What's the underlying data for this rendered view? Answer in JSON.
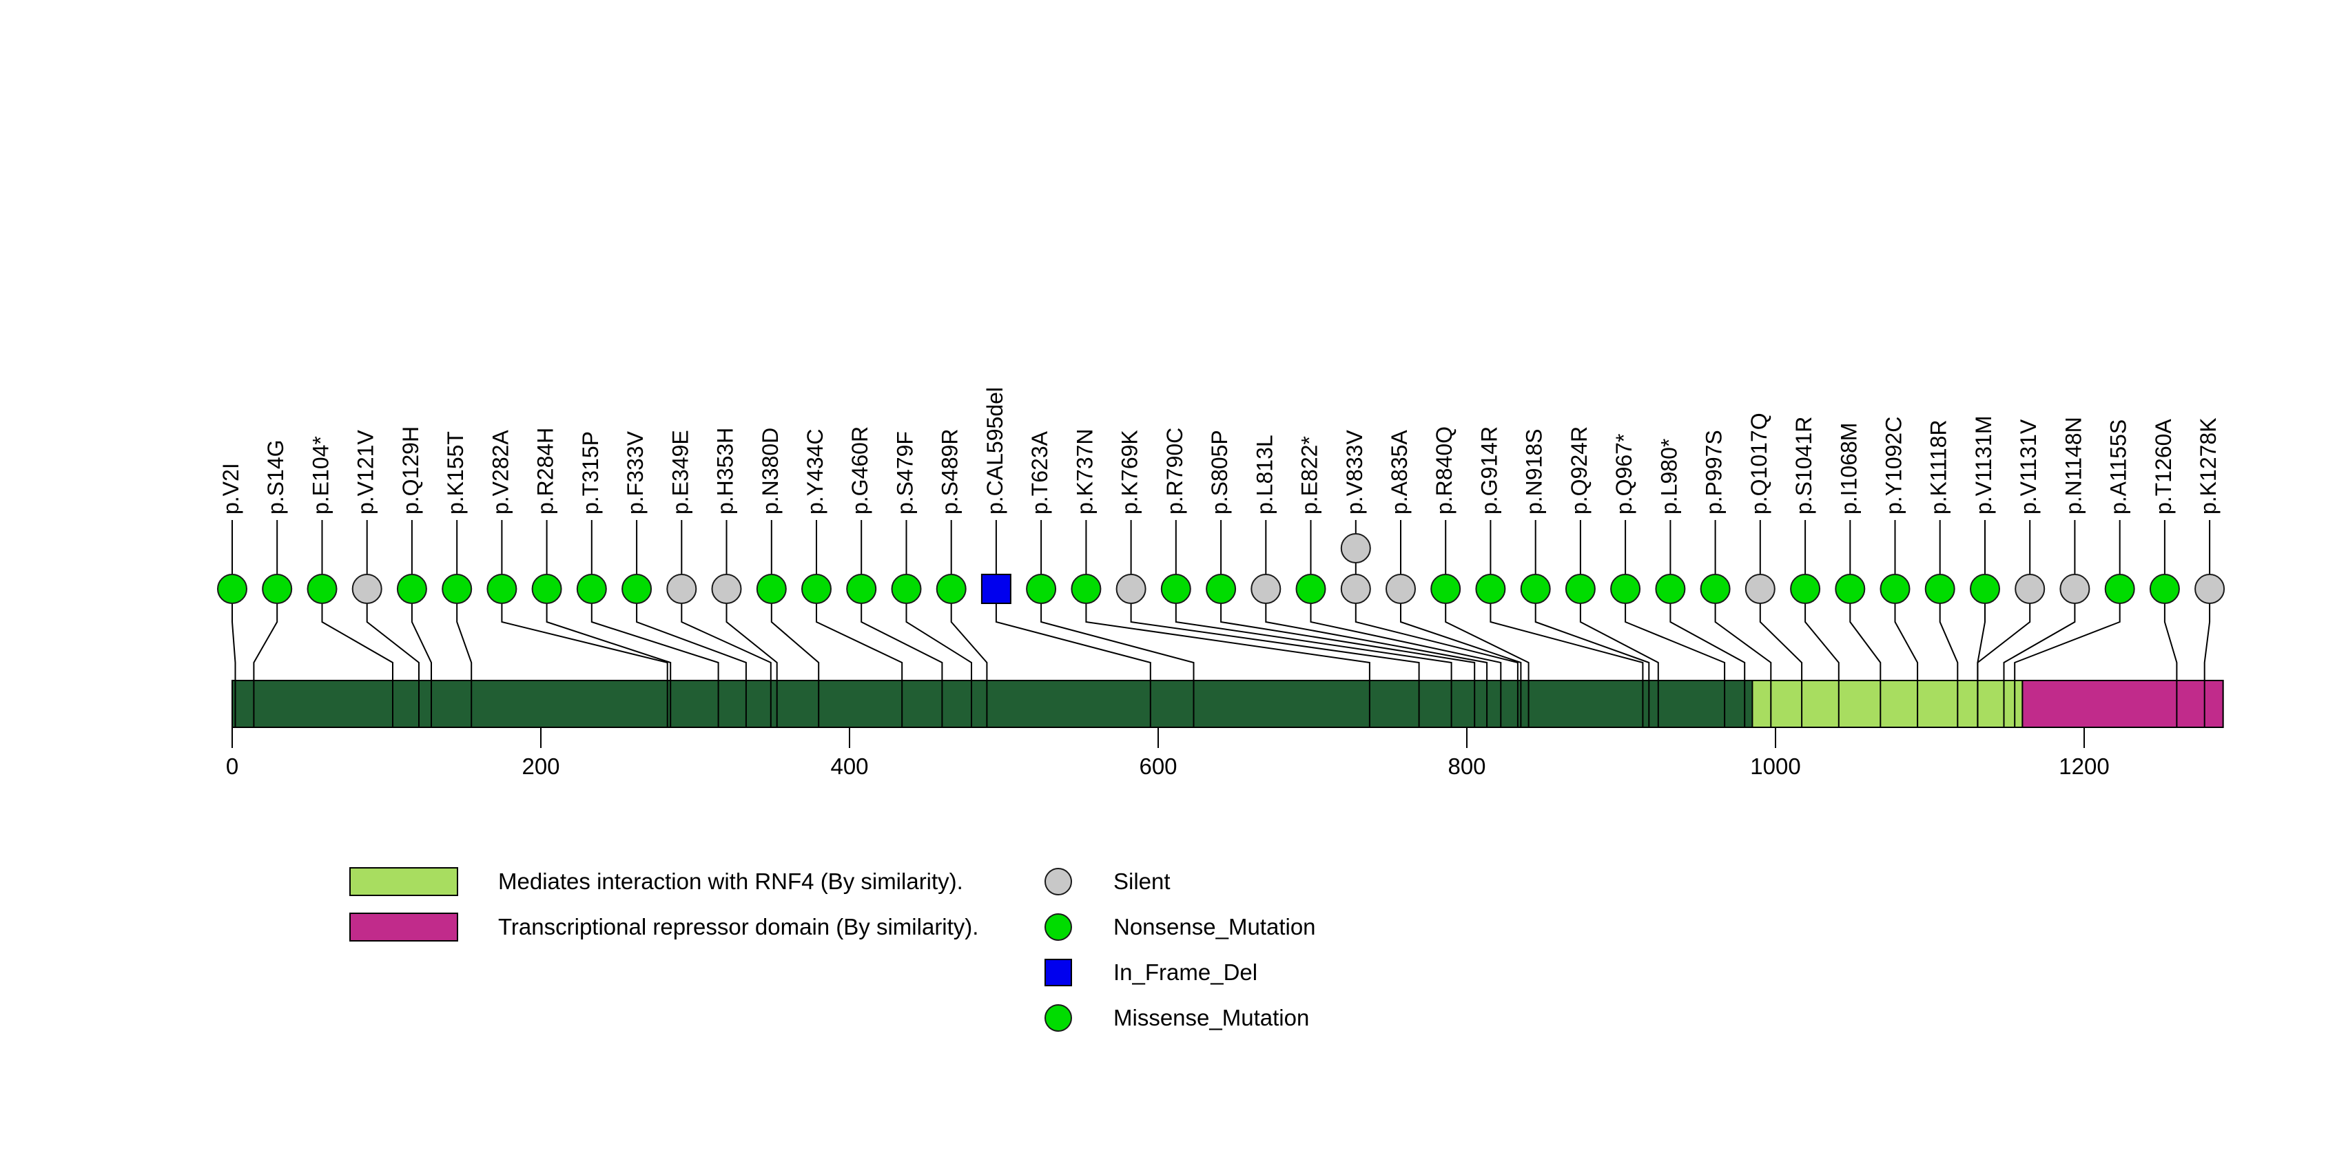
{
  "figure": {
    "background": "#FFFFFF",
    "description": "Protein lollipop mutation plot"
  },
  "chart_data": {
    "type": "lollipop",
    "title": "",
    "xlabel": "",
    "ylabel": "",
    "axis": {
      "ticks": [
        0,
        200,
        400,
        600,
        800,
        1000,
        1200
      ],
      "range": [
        0,
        1290
      ]
    },
    "protein": {
      "length_aa": 1290,
      "backbone_color": "#215E33",
      "domains": [
        {
          "name": "rnf4-interaction",
          "label": "Mediates interaction with RNF4 (By similarity).",
          "start": 985,
          "end": 1160,
          "color": "#A8DD60"
        },
        {
          "name": "transcriptional-repressor",
          "label": "Transcriptional repressor domain (By similarity).",
          "start": 1160,
          "end": 1290,
          "color": "#C12B8B"
        }
      ]
    },
    "mutation_types": [
      {
        "label": "Silent",
        "color": "#C8C8C8",
        "shape": "circle"
      },
      {
        "label": "Nonsense_Mutation",
        "color": "#00DC00",
        "shape": "circle"
      },
      {
        "label": "In_Frame_Del",
        "color": "#0000EE",
        "shape": "square"
      },
      {
        "label": "Missense_Mutation",
        "color": "#00DC00",
        "shape": "circle"
      }
    ],
    "mutations": [
      {
        "label": "p.V2I",
        "pos": 2,
        "type": "Missense_Mutation",
        "count": 1
      },
      {
        "label": "p.S14G",
        "pos": 14,
        "type": "Missense_Mutation",
        "count": 1
      },
      {
        "label": "p.E104*",
        "pos": 104,
        "type": "Nonsense_Mutation",
        "count": 1
      },
      {
        "label": "p.V121V",
        "pos": 121,
        "type": "Silent",
        "count": 1
      },
      {
        "label": "p.Q129H",
        "pos": 129,
        "type": "Missense_Mutation",
        "count": 1
      },
      {
        "label": "p.K155T",
        "pos": 155,
        "type": "Missense_Mutation",
        "count": 1
      },
      {
        "label": "p.V282A",
        "pos": 282,
        "type": "Missense_Mutation",
        "count": 1
      },
      {
        "label": "p.R284H",
        "pos": 284,
        "type": "Missense_Mutation",
        "count": 1
      },
      {
        "label": "p.T315P",
        "pos": 315,
        "type": "Missense_Mutation",
        "count": 1
      },
      {
        "label": "p.F333V",
        "pos": 333,
        "type": "Missense_Mutation",
        "count": 1
      },
      {
        "label": "p.E349E",
        "pos": 349,
        "type": "Silent",
        "count": 1
      },
      {
        "label": "p.H353H",
        "pos": 353,
        "type": "Silent",
        "count": 1
      },
      {
        "label": "p.N380D",
        "pos": 380,
        "type": "Missense_Mutation",
        "count": 1
      },
      {
        "label": "p.Y434C",
        "pos": 434,
        "type": "Missense_Mutation",
        "count": 1
      },
      {
        "label": "p.G460R",
        "pos": 460,
        "type": "Missense_Mutation",
        "count": 1
      },
      {
        "label": "p.S479F",
        "pos": 479,
        "type": "Missense_Mutation",
        "count": 1
      },
      {
        "label": "p.S489R",
        "pos": 489,
        "type": "Missense_Mutation",
        "count": 1
      },
      {
        "label": "p.CAL595del",
        "pos": 595,
        "type": "In_Frame_Del",
        "count": 1
      },
      {
        "label": "p.T623A",
        "pos": 623,
        "type": "Missense_Mutation",
        "count": 1
      },
      {
        "label": "p.K737N",
        "pos": 737,
        "type": "Missense_Mutation",
        "count": 1
      },
      {
        "label": "p.K769K",
        "pos": 769,
        "type": "Silent",
        "count": 1
      },
      {
        "label": "p.R790C",
        "pos": 790,
        "type": "Missense_Mutation",
        "count": 1
      },
      {
        "label": "p.S805P",
        "pos": 805,
        "type": "Missense_Mutation",
        "count": 1
      },
      {
        "label": "p.L813L",
        "pos": 813,
        "type": "Silent",
        "count": 1
      },
      {
        "label": "p.E822*",
        "pos": 822,
        "type": "Nonsense_Mutation",
        "count": 1
      },
      {
        "label": "p.V833V",
        "pos": 833,
        "type": "Silent",
        "count": 2
      },
      {
        "label": "p.A835A",
        "pos": 835,
        "type": "Silent",
        "count": 1
      },
      {
        "label": "p.R840Q",
        "pos": 840,
        "type": "Missense_Mutation",
        "count": 1
      },
      {
        "label": "p.G914R",
        "pos": 914,
        "type": "Missense_Mutation",
        "count": 1
      },
      {
        "label": "p.N918S",
        "pos": 918,
        "type": "Missense_Mutation",
        "count": 1
      },
      {
        "label": "p.Q924R",
        "pos": 924,
        "type": "Missense_Mutation",
        "count": 1
      },
      {
        "label": "p.Q967*",
        "pos": 967,
        "type": "Nonsense_Mutation",
        "count": 1
      },
      {
        "label": "p.L980*",
        "pos": 980,
        "type": "Nonsense_Mutation",
        "count": 1
      },
      {
        "label": "p.P997S",
        "pos": 997,
        "type": "Missense_Mutation",
        "count": 1
      },
      {
        "label": "p.Q1017Q",
        "pos": 1017,
        "type": "Silent",
        "count": 1
      },
      {
        "label": "p.S1041R",
        "pos": 1041,
        "type": "Missense_Mutation",
        "count": 1
      },
      {
        "label": "p.I1068M",
        "pos": 1068,
        "type": "Missense_Mutation",
        "count": 1
      },
      {
        "label": "p.Y1092C",
        "pos": 1092,
        "type": "Missense_Mutation",
        "count": 1
      },
      {
        "label": "p.K1118R",
        "pos": 1118,
        "type": "Missense_Mutation",
        "count": 1
      },
      {
        "label": "p.V1131M",
        "pos": 1131,
        "type": "Missense_Mutation",
        "count": 1
      },
      {
        "label": "p.V1131V",
        "pos": 1131,
        "type": "Silent",
        "count": 1
      },
      {
        "label": "p.N1148N",
        "pos": 1148,
        "type": "Silent",
        "count": 1
      },
      {
        "label": "p.A1155S",
        "pos": 1155,
        "type": "Missense_Mutation",
        "count": 1
      },
      {
        "label": "p.T1260A",
        "pos": 1260,
        "type": "Missense_Mutation",
        "count": 1
      },
      {
        "label": "p.K1278K",
        "pos": 1278,
        "type": "Silent",
        "count": 1
      }
    ]
  }
}
